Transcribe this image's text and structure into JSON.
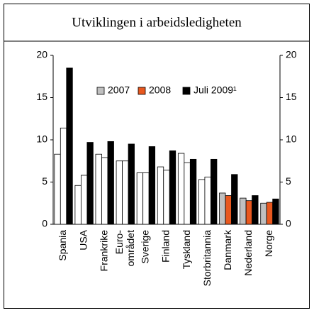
{
  "chart_data": {
    "type": "bar",
    "title": "Utviklingen i arbeidsledigheten",
    "categories": [
      "Spania",
      "USA",
      "Frankrike",
      "Euro-området",
      "Sverige",
      "Finland",
      "Tyskland",
      "Storbritannia",
      "Danmark",
      "Nederland",
      "Norge"
    ],
    "series": [
      {
        "name": "2007",
        "color": "#c0c0c0",
        "colors": [
          "#ffffff",
          "#ffffff",
          "#ffffff",
          "#ffffff",
          "#ffffff",
          "#ffffff",
          "#ffffff",
          "#ffffff",
          "#c0c0c0",
          "#c0c0c0",
          "#c0c0c0"
        ],
        "values": [
          8.3,
          4.6,
          8.3,
          7.5,
          6.1,
          6.8,
          8.4,
          5.3,
          3.7,
          3.1,
          2.5
        ]
      },
      {
        "name": "2008",
        "color": "#e8581f",
        "colors": [
          "#ffffff",
          "#ffffff",
          "#ffffff",
          "#ffffff",
          "#ffffff",
          "#ffffff",
          "#ffffff",
          "#ffffff",
          "#e8581f",
          "#e8581f",
          "#e8581f"
        ],
        "values": [
          11.4,
          5.8,
          7.9,
          7.5,
          6.1,
          6.4,
          7.3,
          5.6,
          3.4,
          2.8,
          2.6
        ]
      },
      {
        "name": "Juli 2009¹",
        "color": "#000000",
        "colors": [
          "#000000",
          "#000000",
          "#000000",
          "#000000",
          "#000000",
          "#000000",
          "#000000",
          "#000000",
          "#000000",
          "#000000",
          "#000000"
        ],
        "values": [
          18.5,
          9.7,
          9.8,
          9.5,
          9.2,
          8.7,
          7.7,
          7.7,
          5.9,
          3.4,
          3.0
        ]
      }
    ],
    "ylim": [
      0,
      20
    ],
    "yticks": [
      0,
      5,
      10,
      15,
      20
    ],
    "y2lim": [
      0,
      20
    ],
    "y2ticks": [
      0,
      5,
      10,
      15,
      20
    ],
    "grid": false
  }
}
